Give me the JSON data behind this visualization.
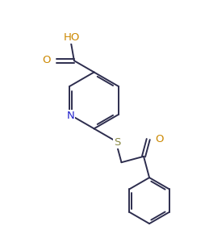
{
  "bg_color": "#ffffff",
  "line_color": "#2d2d4e",
  "atom_colors": {
    "O": "#cc8800",
    "N": "#2222cc",
    "S": "#888844",
    "C": "#2d2d4e"
  },
  "font_size_atoms": 8.5,
  "line_width": 1.4,
  "figsize": [
    2.59,
    3.11
  ],
  "dpi": 100,
  "xlim": [
    0,
    10
  ],
  "ylim": [
    0,
    12
  ]
}
